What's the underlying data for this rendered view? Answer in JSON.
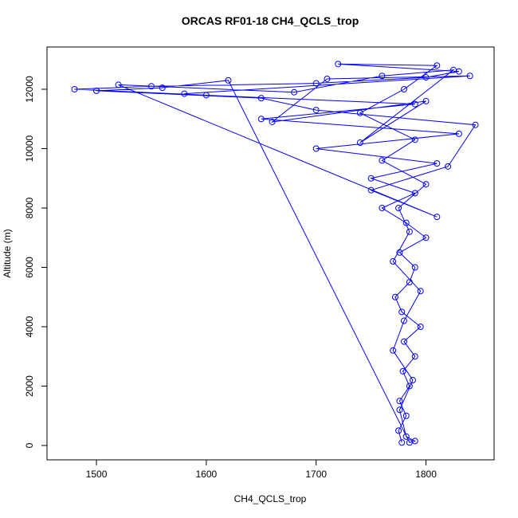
{
  "chart_data": {
    "type": "scatter",
    "title": "ORCAS RF01-18 CH4_QCLS_trop",
    "x_label": "CH4_QCLS_trop",
    "y_label": "Altitude (m)",
    "x": [
      1778,
      1775,
      1782,
      1776,
      1785,
      1779,
      1790,
      1780,
      1795,
      1778,
      1772,
      1785,
      1790,
      1776,
      1800,
      1782,
      1760,
      1790,
      1750,
      1810,
      1700,
      1830,
      1650,
      1790,
      1600,
      1480,
      1550,
      1700,
      1800,
      1830,
      1720,
      1810,
      1780,
      1740,
      1790,
      1760,
      1800,
      1775,
      1785,
      1770,
      1795,
      1780,
      1770,
      1788,
      1776,
      1782,
      1790,
      1785,
      1620,
      1560,
      1500,
      1650,
      1700,
      1845,
      1820,
      1750,
      1810,
      1520,
      1680,
      1760,
      1825,
      1740,
      1800,
      1660,
      1710,
      1840,
      1580
    ],
    "values": [
      100,
      500,
      1000,
      1500,
      2000,
      2500,
      3000,
      3500,
      4000,
      4500,
      5000,
      5500,
      6000,
      6500,
      7000,
      7500,
      8000,
      8500,
      9000,
      9500,
      10000,
      10500,
      11000,
      11500,
      11800,
      12000,
      12100,
      12200,
      12400,
      12600,
      12850,
      12800,
      12000,
      11200,
      10300,
      9600,
      8800,
      8000,
      7200,
      6200,
      5200,
      4200,
      3200,
      2200,
      1200,
      300,
      150,
      100,
      12300,
      12050,
      11950,
      11700,
      11300,
      10800,
      9400,
      8600,
      7700,
      12150,
      11900,
      12450,
      12650,
      10200,
      11600,
      10900,
      12350,
      12450,
      11850
    ],
    "color": "#0000ff",
    "xlim": [
      1455,
      1862
    ],
    "ylim": [
      -483,
      13423
    ],
    "xticks": [
      1500,
      1600,
      1700,
      1800
    ],
    "yticks": [
      0,
      2000,
      4000,
      6000,
      8000,
      10000,
      12000
    ]
  }
}
